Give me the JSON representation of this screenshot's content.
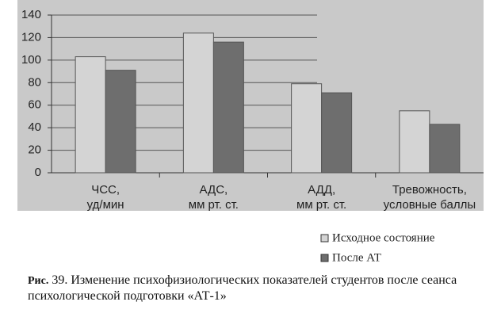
{
  "chart_data": {
    "type": "bar",
    "categories": [
      [
        "ЧСС,",
        "уд/мин"
      ],
      [
        "АДС,",
        "мм рт. ст."
      ],
      [
        "АДД,",
        "мм рт. ст."
      ],
      [
        "Тревожность,",
        "условные баллы"
      ]
    ],
    "series": [
      {
        "name": "Исходное состояние",
        "color": "#d4d4d4",
        "values": [
          103,
          124,
          79,
          55
        ]
      },
      {
        "name": "После АТ",
        "color": "#6e6e6e",
        "values": [
          91,
          116,
          71,
          43
        ]
      }
    ],
    "ylim": [
      0,
      140
    ],
    "yticks": [
      0,
      20,
      40,
      60,
      80,
      100,
      120,
      140
    ],
    "grid": true,
    "caption_label": "Рис.",
    "caption": "39. Изменение психофизиологических показателей студентов после сеанса психологической подготовки «АТ-1»"
  }
}
